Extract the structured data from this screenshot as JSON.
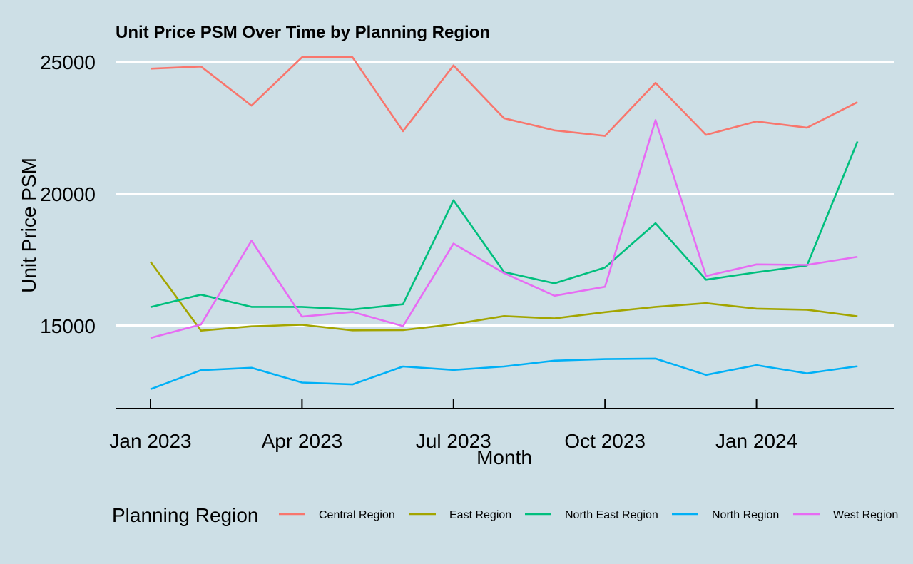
{
  "chart_data": {
    "type": "line",
    "title": "Unit Price PSM Over Time by Planning Region",
    "xlabel": "Month",
    "ylabel": "Unit Price PSM",
    "x": [
      "2023-01",
      "2023-02",
      "2023-03",
      "2023-04",
      "2023-05",
      "2023-06",
      "2023-07",
      "2023-08",
      "2023-09",
      "2023-10",
      "2023-11",
      "2023-12",
      "2024-01",
      "2024-02",
      "2024-03"
    ],
    "x_ticks": [
      {
        "value": "2023-01",
        "label": "Jan 2023"
      },
      {
        "value": "2023-04",
        "label": "Apr 2023"
      },
      {
        "value": "2023-07",
        "label": "Jul 2023"
      },
      {
        "value": "2023-10",
        "label": "Oct 2023"
      },
      {
        "value": "2024-01",
        "label": "Jan 2024"
      }
    ],
    "y_ticks": [
      15000,
      20000,
      25000
    ],
    "ylim": [
      12150,
      26100
    ],
    "grid": "horizontal major",
    "legend": {
      "title": "Planning Region",
      "position": "bottom"
    },
    "series": [
      {
        "name": "Central Region",
        "color": "#f8766d",
        "values": [
          24750,
          24830,
          23350,
          25180,
          25180,
          22380,
          24870,
          22870,
          22410,
          22200,
          24210,
          22240,
          22750,
          22510,
          23480
        ]
      },
      {
        "name": "East Region",
        "color": "#a3a500",
        "values": [
          17430,
          14820,
          14980,
          15040,
          14830,
          14840,
          15060,
          15370,
          15280,
          15520,
          15720,
          15860,
          15650,
          15610,
          15360
        ]
      },
      {
        "name": "North East Region",
        "color": "#00bf7d",
        "values": [
          15710,
          16180,
          15720,
          15720,
          15620,
          15820,
          19760,
          17040,
          16610,
          17210,
          18890,
          16750,
          17030,
          17290,
          21990
        ]
      },
      {
        "name": "North Region",
        "color": "#00b0f6",
        "values": [
          12600,
          13320,
          13410,
          12850,
          12780,
          13460,
          13330,
          13460,
          13680,
          13740,
          13760,
          13140,
          13510,
          13200,
          13470
        ]
      },
      {
        "name": "West Region",
        "color": "#e76bf3",
        "values": [
          14540,
          15050,
          18230,
          15350,
          15530,
          14990,
          18120,
          17000,
          16140,
          16480,
          22800,
          16890,
          17330,
          17310,
          17620
        ]
      }
    ]
  }
}
